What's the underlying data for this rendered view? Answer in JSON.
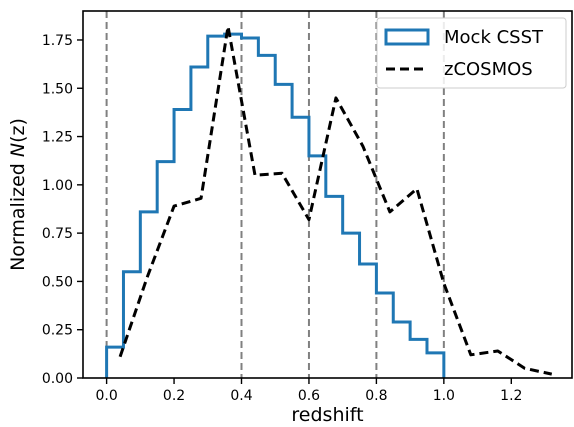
{
  "chart_data": {
    "type": "line",
    "title": "",
    "xlabel": "redshift",
    "ylabel_prefix": "Normalized ",
    "ylabel_var": "N",
    "ylabel_arg": "(z)",
    "xlim": [
      -0.07,
      1.38
    ],
    "ylim": [
      0.0,
      1.9
    ],
    "xticks": [
      0.0,
      0.2,
      0.4,
      0.6,
      0.8,
      1.0,
      1.2
    ],
    "xtick_labels": [
      "0.0",
      "0.2",
      "0.4",
      "0.6",
      "0.8",
      "1.0",
      "1.2"
    ],
    "yticks": [
      0.0,
      0.25,
      0.5,
      0.75,
      1.0,
      1.25,
      1.5,
      1.75
    ],
    "ytick_labels": [
      "0.00",
      "0.25",
      "0.50",
      "0.75",
      "1.00",
      "1.25",
      "1.50",
      "1.75"
    ],
    "vlines": [
      0.0,
      0.4,
      0.6,
      0.8,
      1.0
    ],
    "legend_position": "top-right",
    "grid": false,
    "series": [
      {
        "name": "Mock CSST",
        "style": "step-histogram",
        "color": "#1f77b4",
        "bin_edges": [
          0.0,
          0.05,
          0.1,
          0.15,
          0.2,
          0.25,
          0.3,
          0.35,
          0.4,
          0.45,
          0.5,
          0.55,
          0.6,
          0.65,
          0.7,
          0.75,
          0.8,
          0.85,
          0.9,
          0.95,
          1.0
        ],
        "values": [
          0.16,
          0.55,
          0.86,
          1.12,
          1.39,
          1.61,
          1.77,
          1.78,
          1.76,
          1.67,
          1.52,
          1.35,
          1.15,
          0.94,
          0.75,
          0.59,
          0.44,
          0.29,
          0.2,
          0.13
        ]
      },
      {
        "name": "zCOSMOS",
        "style": "dashed-line",
        "color": "#000000",
        "x": [
          0.04,
          0.12,
          0.2,
          0.28,
          0.36,
          0.44,
          0.52,
          0.6,
          0.68,
          0.76,
          0.84,
          0.92,
          1.0,
          1.08,
          1.16,
          1.24,
          1.32
        ],
        "y": [
          0.11,
          0.52,
          0.89,
          0.93,
          1.82,
          1.05,
          1.06,
          0.82,
          1.45,
          1.2,
          0.86,
          0.98,
          0.49,
          0.12,
          0.14,
          0.05,
          0.02
        ]
      }
    ]
  }
}
